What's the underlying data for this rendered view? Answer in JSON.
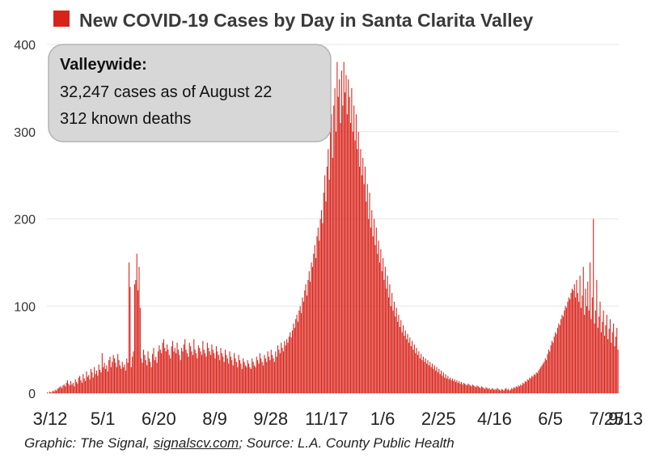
{
  "chart_data": {
    "type": "bar",
    "title": "New COVID-19 Cases by Day in Santa Clarita Valley",
    "xlabel": "",
    "ylabel": "",
    "ylim": [
      0,
      400
    ],
    "y_ticks": [
      "0",
      "100",
      "200",
      "300",
      "400"
    ],
    "x_tick_labels": [
      "3/12",
      "5/1",
      "6/20",
      "8/9",
      "9/28",
      "11/17",
      "1/6",
      "2/25",
      "4/16",
      "6/5",
      "7/25",
      "9/13"
    ],
    "x_tick_interval_days": 50,
    "grid": true,
    "series_color": "#d8231a",
    "annotation": {
      "heading": "Valleywide:",
      "lines": [
        "32,247 cases as of August 22",
        "312 known deaths"
      ]
    },
    "series": [
      {
        "values": [
          1,
          0,
          2,
          1,
          1,
          3,
          2,
          4,
          3,
          5,
          6,
          7,
          8,
          6,
          9,
          10,
          8,
          12,
          15,
          11,
          9,
          14,
          10,
          12,
          8,
          16,
          13,
          11,
          18,
          20,
          15,
          12,
          22,
          17,
          14,
          25,
          19,
          21,
          16,
          28,
          24,
          18,
          30,
          22,
          26,
          20,
          33,
          27,
          24,
          46,
          30,
          35,
          28,
          32,
          25,
          38,
          42,
          30,
          36,
          44,
          40,
          35,
          30,
          45,
          38,
          32,
          28,
          36,
          30,
          33,
          26,
          40,
          35,
          150,
          122,
          30,
          42,
          48,
          125,
          130,
          160,
          118,
          145,
          98,
          40,
          35,
          50,
          44,
          38,
          32,
          48,
          40,
          36,
          30,
          45,
          52,
          38,
          42,
          35,
          48,
          55,
          50,
          46,
          58,
          62,
          52,
          48,
          56,
          50,
          44,
          40,
          54,
          60,
          48,
          52,
          46,
          58,
          50,
          44,
          38,
          52,
          48,
          56,
          62,
          50,
          46,
          42,
          58,
          54,
          48,
          44,
          62,
          50,
          46,
          40,
          55,
          52,
          48,
          44,
          60,
          50,
          46,
          42,
          58,
          52,
          48,
          44,
          56,
          50,
          46,
          40,
          54,
          48,
          44,
          38,
          52,
          46,
          42,
          36,
          50,
          44,
          40,
          34,
          48,
          42,
          38,
          32,
          46,
          40,
          36,
          30,
          44,
          38,
          34,
          28,
          40,
          36,
          32,
          30,
          38,
          34,
          30,
          28,
          40,
          36,
          32,
          30,
          42,
          38,
          34,
          46,
          40,
          36,
          32,
          44,
          40,
          36,
          48,
          42,
          38,
          50,
          44,
          40,
          36,
          48,
          42,
          55,
          50,
          46,
          58,
          52,
          48,
          60,
          55,
          62,
          58,
          65,
          70,
          64,
          72,
          80,
          75,
          85,
          90,
          82,
          95,
          100,
          92,
          110,
          105,
          118,
          125,
          112,
          130,
          140,
          128,
          150,
          145,
          160,
          170,
          155,
          180,
          190,
          175,
          200,
          210,
          195,
          230,
          250,
          220,
          260,
          280,
          245,
          300,
          320,
          270,
          330,
          350,
          300,
          380,
          340,
          360,
          310,
          370,
          330,
          380,
          345,
          365,
          320,
          360,
          340,
          310,
          350,
          300,
          330,
          290,
          320,
          280,
          300,
          260,
          280,
          250,
          270,
          240,
          260,
          220,
          240,
          200,
          230,
          190,
          210,
          180,
          200,
          170,
          190,
          160,
          175,
          150,
          165,
          140,
          155,
          130,
          145,
          120,
          135,
          110,
          125,
          100,
          115,
          95,
          105,
          88,
          98,
          82,
          90,
          76,
          84,
          70,
          78,
          66,
          72,
          62,
          68,
          58,
          64,
          54,
          60,
          50,
          56,
          46,
          52,
          44,
          48,
          40,
          45,
          38,
          42,
          36,
          40,
          34,
          38,
          32,
          36,
          30,
          34,
          28,
          32,
          26,
          30,
          24,
          28,
          22,
          26,
          20,
          24,
          18,
          22,
          17,
          20,
          16,
          18,
          15,
          17,
          14,
          16,
          13,
          15,
          12,
          14,
          11,
          13,
          10,
          12,
          11,
          10,
          9,
          11,
          10,
          9,
          8,
          10,
          9,
          8,
          7,
          9,
          8,
          7,
          6,
          8,
          7,
          6,
          5,
          7,
          6,
          5,
          6,
          4,
          5,
          6,
          4,
          5,
          4,
          6,
          5,
          4,
          3,
          5,
          4,
          3,
          5,
          6,
          4,
          5,
          3,
          4,
          6,
          5,
          7,
          6,
          8,
          7,
          9,
          8,
          10,
          9,
          12,
          11,
          14,
          13,
          16,
          15,
          18,
          17,
          20,
          19,
          22,
          21,
          24,
          23,
          26,
          28,
          30,
          32,
          34,
          36,
          40,
          38,
          45,
          50,
          48,
          55,
          60,
          58,
          65,
          70,
          68,
          75,
          80,
          78,
          85,
          90,
          88,
          95,
          100,
          98,
          105,
          110,
          108,
          115,
          120,
          118,
          125,
          110,
          130,
          115,
          105,
          135,
          98,
          112,
          145,
          90,
          120,
          100,
          128,
          95,
          150,
          85,
          110,
          200,
          80,
          95,
          130,
          75,
          88,
          105,
          70,
          82,
          95,
          66,
          78,
          90,
          62,
          74,
          85,
          58,
          70,
          80,
          54,
          65,
          75,
          50
        ]
      }
    ]
  },
  "footer": {
    "prefix": "Graphic: The Signal, ",
    "link": "signalscv.com",
    "suffix": "; Source: L.A. County Public Health"
  }
}
